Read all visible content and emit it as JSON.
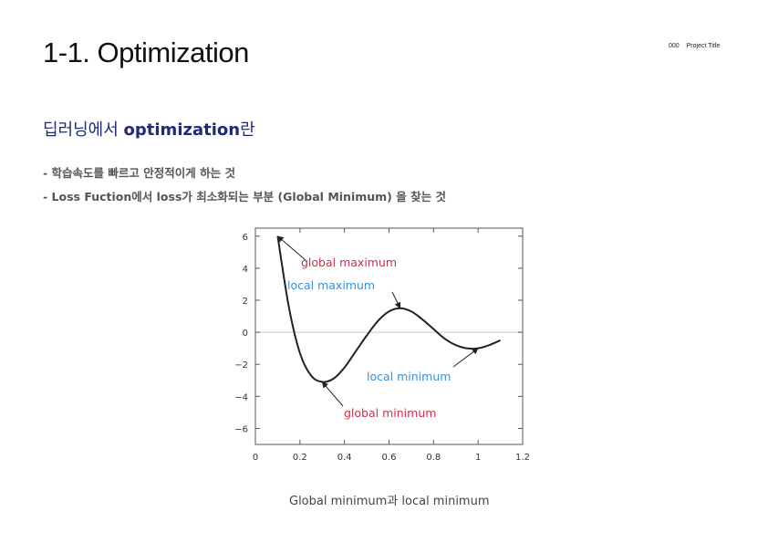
{
  "header": {
    "title": "1-1. Optimization",
    "project_number": "000",
    "project_title": "Project Title"
  },
  "section": {
    "heading_prefix": "딥러닝에서 ",
    "heading_keyword": "optimization",
    "heading_suffix": "란",
    "bullets": [
      "- 학습속도를 빠르고 안정적이게 하는 것",
      "- Loss Fuction에서 loss가 최소화되는 부분 (Global Minimum) 을 찾는 것"
    ]
  },
  "figure": {
    "caption": "Global minimum과 local minimum"
  },
  "chart_data": {
    "type": "line",
    "x": [
      0.1,
      0.15,
      0.2,
      0.25,
      0.3,
      0.35,
      0.4,
      0.45,
      0.5,
      0.55,
      0.6,
      0.65,
      0.7,
      0.75,
      0.8,
      0.85,
      0.9,
      0.95,
      1.0,
      1.05,
      1.1
    ],
    "y": [
      6.0,
      1.6,
      -1.3,
      -2.7,
      -3.1,
      -2.9,
      -2.2,
      -1.2,
      -0.2,
      0.7,
      1.3,
      1.5,
      1.3,
      0.8,
      0.2,
      -0.4,
      -0.8,
      -1.0,
      -1.0,
      -0.8,
      -0.5
    ],
    "xlim": [
      0,
      1.2
    ],
    "ylim": [
      -7,
      6.5
    ],
    "xticks": [
      0,
      0.2,
      0.4,
      0.6,
      0.8,
      1.0,
      1.2
    ],
    "xtick_labels": [
      "0",
      "0.2",
      "0.4",
      "0.6",
      "0.8",
      "1",
      "1.2"
    ],
    "yticks": [
      6,
      4,
      2,
      0,
      -2,
      -4,
      -6
    ],
    "ytick_labels": [
      "6",
      "4",
      "2",
      "0",
      "−2",
      "−4",
      "−6"
    ],
    "reference_line_y": 0,
    "grid": false,
    "line_color": "#222222",
    "annotations": [
      {
        "text": "global maximum",
        "color": "#c8324b",
        "point": [
          0.1,
          6.0
        ]
      },
      {
        "text": "local maximum",
        "color": "#3b8fd6",
        "point": [
          0.65,
          1.5
        ]
      },
      {
        "text": "local minimum",
        "color": "#3b8fd6",
        "point": [
          1.0,
          -1.0
        ]
      },
      {
        "text": "global minimum",
        "color": "#c8324b",
        "point": [
          0.3,
          -3.1
        ]
      }
    ]
  }
}
